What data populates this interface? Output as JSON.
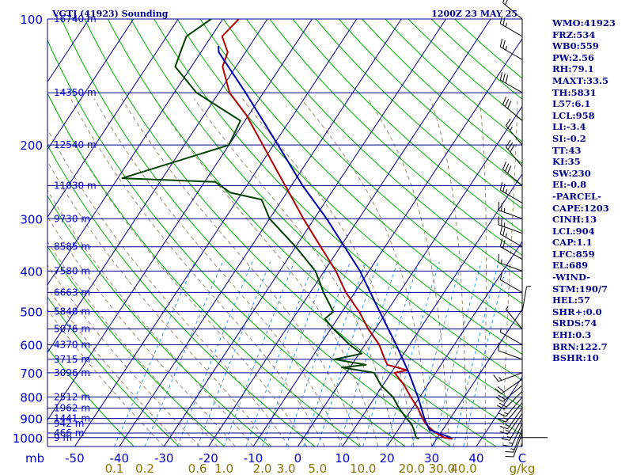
{
  "header": {
    "station": "VGTJ (41923) Sounding",
    "time": "1200Z 23 MAY 25"
  },
  "indices": [
    "WMO:41923",
    "FRZ:534",
    "WB0:559",
    "PW:2.56",
    "RH:79.1",
    "MAXT:33.5",
    "TH:5831",
    "L57:6.1",
    "LCL:958",
    "LI:-3.4",
    "SI:-0.2",
    "TT:43",
    "KI:35",
    "SW:230",
    "EI:-0.8",
    "-PARCEL-",
    "CAPE:1203",
    "CINH:13",
    "LCL:904",
    "CAP:1.1",
    "LFC:859",
    "EL:689",
    "-WIND-",
    "STM:190/7",
    "HEL:57",
    "SHR+:0.0",
    "SRDS:74",
    "EHI:0.3",
    "BRN:122.7",
    "BSHR:10"
  ],
  "colors": {
    "background": "#ffffff",
    "isobar": "#00008b",
    "isotherm": "#00008b",
    "dry_adiabat": "#00b000",
    "moist_adiabat": "#9a8a70",
    "mixing_ratio": "#3399ff",
    "temperature": "#b00000",
    "dewpoint": "#004000",
    "parcel": "#0000aa",
    "wind": "#000000",
    "label": "#0000cd",
    "mixlabel": "#8b7500"
  },
  "chart_data": {
    "type": "line",
    "title": "VGTJ (41923) Sounding",
    "x_axis": {
      "label": "C",
      "ticks": [
        "-50",
        "-40",
        "-30",
        "-20",
        "-10",
        "0",
        "10",
        "20",
        "30",
        "40"
      ],
      "values": [
        -50,
        -40,
        -30,
        -20,
        -10,
        0,
        10,
        20,
        30,
        40
      ],
      "range": [
        -50,
        50
      ]
    },
    "y_axis": {
      "label": "mb",
      "ticks": [
        "100",
        "200",
        "300",
        "400",
        "500",
        "600",
        "700",
        "800",
        "900",
        "1000"
      ],
      "values": [
        100,
        200,
        300,
        400,
        500,
        600,
        700,
        800,
        900,
        1000
      ],
      "range": [
        100,
        1050
      ],
      "scale": "log"
    },
    "mixing_ratio_axis": {
      "label": "g/kg",
      "ticks": [
        "0.1",
        "0.2",
        "0.6",
        "1.0",
        "2.0",
        "3.0",
        "5.0",
        "10.0",
        "20.0",
        "30.0",
        "40.0"
      ],
      "values": [
        0.1,
        0.2,
        0.6,
        1.0,
        2.0,
        3.0,
        5.0,
        10.0,
        20.0,
        30.0,
        40.0
      ]
    },
    "heights": [
      {
        "p": 1000,
        "label": "9 m"
      },
      {
        "p": 975,
        "label": "466 m"
      },
      {
        "p": 925,
        "label": "942 m"
      },
      {
        "p": 900,
        "label": "1441 m"
      },
      {
        "p": 850,
        "label": "1962 m"
      },
      {
        "p": 800,
        "label": "2512 m"
      },
      {
        "p": 700,
        "label": "3096 m"
      },
      {
        "p": 650,
        "label": "3715 m"
      },
      {
        "p": 600,
        "label": "4370 m"
      },
      {
        "p": 550,
        "label": "5076 m"
      },
      {
        "p": 500,
        "label": "5840 m"
      },
      {
        "p": 450,
        "label": "6663 m"
      },
      {
        "p": 400,
        "label": "7580 m"
      },
      {
        "p": 350,
        "label": "8585 m"
      },
      {
        "p": 300,
        "label": "9730 m"
      },
      {
        "p": 250,
        "label": "11030 m"
      },
      {
        "p": 200,
        "label": "12540 m"
      },
      {
        "p": 150,
        "label": "14350 m"
      },
      {
        "p": 100,
        "label": "16740 m"
      }
    ],
    "series": [
      {
        "name": "temperature",
        "points": [
          {
            "p": 1006,
            "t": 33.5
          },
          {
            "p": 1000,
            "t": 31.5
          },
          {
            "p": 975,
            "t": 29.0
          },
          {
            "p": 950,
            "t": 27.0
          },
          {
            "p": 925,
            "t": 25.2
          },
          {
            "p": 900,
            "t": 23.8
          },
          {
            "p": 850,
            "t": 21.2
          },
          {
            "p": 800,
            "t": 18.0
          },
          {
            "p": 750,
            "t": 14.8
          },
          {
            "p": 700,
            "t": 10.8
          },
          {
            "p": 690,
            "t": 13.2
          },
          {
            "p": 670,
            "t": 8.0
          },
          {
            "p": 650,
            "t": 6.6
          },
          {
            "p": 600,
            "t": 3.2
          },
          {
            "p": 550,
            "t": -1.6
          },
          {
            "p": 500,
            "t": -6.2
          },
          {
            "p": 450,
            "t": -12.0
          },
          {
            "p": 400,
            "t": -17.4
          },
          {
            "p": 350,
            "t": -24.4
          },
          {
            "p": 300,
            "t": -32.4
          },
          {
            "p": 270,
            "t": -37.6
          },
          {
            "p": 250,
            "t": -41.4
          },
          {
            "p": 200,
            "t": -52.4
          },
          {
            "p": 170,
            "t": -60.4
          },
          {
            "p": 150,
            "t": -67.6
          },
          {
            "p": 130,
            "t": -73.0
          },
          {
            "p": 120,
            "t": -74.0
          },
          {
            "p": 110,
            "t": -77.6
          },
          {
            "p": 105,
            "t": -77.0
          },
          {
            "p": 100,
            "t": -76.4
          }
        ]
      },
      {
        "name": "dewpoint",
        "points": [
          {
            "p": 1006,
            "t": 26.0
          },
          {
            "p": 1000,
            "t": 25.2
          },
          {
            "p": 950,
            "t": 23.2
          },
          {
            "p": 925,
            "t": 22.0
          },
          {
            "p": 900,
            "t": 20.2
          },
          {
            "p": 850,
            "t": 17.0
          },
          {
            "p": 800,
            "t": 14.0
          },
          {
            "p": 750,
            "t": 9.6
          },
          {
            "p": 700,
            "t": 6.2
          },
          {
            "p": 680,
            "t": -1.8
          },
          {
            "p": 670,
            "t": 3.2
          },
          {
            "p": 650,
            "t": -4.6
          },
          {
            "p": 630,
            "t": 0.6
          },
          {
            "p": 600,
            "t": -3.4
          },
          {
            "p": 550,
            "t": -9.4
          },
          {
            "p": 520,
            "t": -12.8
          },
          {
            "p": 500,
            "t": -12.0
          },
          {
            "p": 450,
            "t": -17.0
          },
          {
            "p": 400,
            "t": -22.0
          },
          {
            "p": 350,
            "t": -30.0
          },
          {
            "p": 300,
            "t": -40.0
          },
          {
            "p": 270,
            "t": -44.6
          },
          {
            "p": 260,
            "t": -52.6
          },
          {
            "p": 245,
            "t": -57.6
          },
          {
            "p": 240,
            "t": -79.0
          },
          {
            "p": 200,
            "t": -60.0
          },
          {
            "p": 175,
            "t": -61.0
          },
          {
            "p": 150,
            "t": -75.0
          },
          {
            "p": 130,
            "t": -83.6
          },
          {
            "p": 120,
            "t": -84.6
          },
          {
            "p": 110,
            "t": -85.6
          },
          {
            "p": 100,
            "t": -82.6
          }
        ]
      },
      {
        "name": "parcel",
        "points": [
          {
            "p": 1000,
            "t": 33.0
          },
          {
            "p": 958,
            "t": 27.0
          },
          {
            "p": 900,
            "t": 24.2
          },
          {
            "p": 850,
            "t": 22.0
          },
          {
            "p": 800,
            "t": 19.6
          },
          {
            "p": 700,
            "t": 14.0
          },
          {
            "p": 600,
            "t": 7.0
          },
          {
            "p": 500,
            "t": -1.6
          },
          {
            "p": 400,
            "t": -12.0
          },
          {
            "p": 300,
            "t": -27.2
          },
          {
            "p": 250,
            "t": -37.5
          },
          {
            "p": 200,
            "t": -49.0
          },
          {
            "p": 150,
            "t": -64.0
          },
          {
            "p": 120,
            "t": -76.0
          },
          {
            "p": 116,
            "t": -77.0
          }
        ]
      }
    ],
    "wind_barbs": [
      {
        "p": 1000,
        "dir": 90,
        "spd": 3
      },
      {
        "p": 975,
        "dir": 200,
        "spd": 10
      },
      {
        "p": 950,
        "dir": 200,
        "spd": 15
      },
      {
        "p": 925,
        "dir": 205,
        "spd": 15
      },
      {
        "p": 900,
        "dir": 210,
        "spd": 15
      },
      {
        "p": 875,
        "dir": 215,
        "spd": 15
      },
      {
        "p": 850,
        "dir": 215,
        "spd": 15
      },
      {
        "p": 825,
        "dir": 220,
        "spd": 15
      },
      {
        "p": 800,
        "dir": 220,
        "spd": 15
      },
      {
        "p": 775,
        "dir": 225,
        "spd": 20
      },
      {
        "p": 750,
        "dir": 230,
        "spd": 20
      },
      {
        "p": 725,
        "dir": 235,
        "spd": 20
      },
      {
        "p": 700,
        "dir": 250,
        "spd": 15
      },
      {
        "p": 650,
        "dir": 290,
        "spd": 10
      },
      {
        "p": 600,
        "dir": 300,
        "spd": 5
      },
      {
        "p": 550,
        "dir": 320,
        "spd": 5
      },
      {
        "p": 500,
        "dir": 10,
        "spd": 5
      },
      {
        "p": 450,
        "dir": 300,
        "spd": 10
      },
      {
        "p": 400,
        "dir": 290,
        "spd": 15
      },
      {
        "p": 375,
        "dir": 300,
        "spd": 20
      },
      {
        "p": 350,
        "dir": 300,
        "spd": 25
      },
      {
        "p": 325,
        "dir": 290,
        "spd": 25
      },
      {
        "p": 300,
        "dir": 290,
        "spd": 25
      },
      {
        "p": 275,
        "dir": 300,
        "spd": 25
      },
      {
        "p": 250,
        "dir": 310,
        "spd": 30
      },
      {
        "p": 225,
        "dir": 320,
        "spd": 30
      },
      {
        "p": 200,
        "dir": 320,
        "spd": 25
      },
      {
        "p": 175,
        "dir": 310,
        "spd": 30
      },
      {
        "p": 150,
        "dir": 300,
        "spd": 30
      },
      {
        "p": 125,
        "dir": 300,
        "spd": 25
      },
      {
        "p": 110,
        "dir": 300,
        "spd": 25
      },
      {
        "p": 100,
        "dir": 310,
        "spd": 20
      }
    ]
  }
}
